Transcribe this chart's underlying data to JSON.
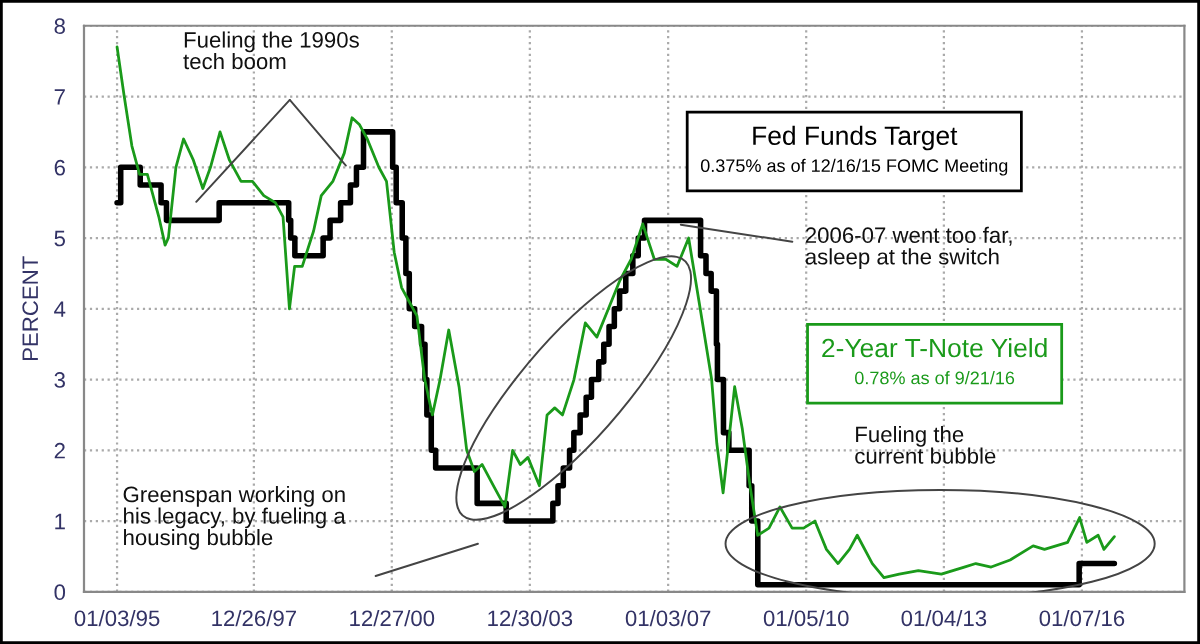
{
  "chart_data": {
    "type": "line",
    "ylabel": "PERCENT",
    "xlim": [
      "1994-04-15",
      "2018-04-01"
    ],
    "xticks": [
      {
        "value": "1995-01-03",
        "label": "01/03/95"
      },
      {
        "value": "1997-12-26",
        "label": "12/26/97"
      },
      {
        "value": "2000-12-27",
        "label": "12/27/00"
      },
      {
        "value": "2003-12-30",
        "label": "12/30/03"
      },
      {
        "value": "2007-01-03",
        "label": "01/03/07"
      },
      {
        "value": "2010-01-05",
        "label": "01/05/10"
      },
      {
        "value": "2013-01-04",
        "label": "01/04/13"
      },
      {
        "value": "2016-01-07",
        "label": "01/07/16"
      }
    ],
    "ylim": [
      0,
      8
    ],
    "yticks": [
      0,
      1,
      2,
      3,
      4,
      5,
      6,
      7,
      8
    ],
    "grid": true,
    "legend": false,
    "series": [
      {
        "name": "Fed Funds Target",
        "type": "step",
        "color": "#000000",
        "x": [
          "1995-01-03",
          "1995-02-01",
          "1995-07-06",
          "1995-12-19",
          "1996-01-31",
          "1997-03-25",
          "1998-09-29",
          "1998-10-15",
          "1998-11-17",
          "1999-06-30",
          "1999-08-24",
          "1999-11-16",
          "2000-02-02",
          "2000-03-21",
          "2000-05-16",
          "2001-01-03",
          "2001-01-31",
          "2001-03-20",
          "2001-04-18",
          "2001-05-15",
          "2001-06-27",
          "2001-08-21",
          "2001-09-17",
          "2001-10-02",
          "2001-11-06",
          "2001-12-11",
          "2002-11-06",
          "2003-06-25",
          "2004-06-30",
          "2004-08-10",
          "2004-09-21",
          "2004-11-10",
          "2004-12-14",
          "2005-02-02",
          "2005-03-22",
          "2005-05-03",
          "2005-06-30",
          "2005-08-09",
          "2005-09-20",
          "2005-11-01",
          "2005-12-13",
          "2006-01-31",
          "2006-03-28",
          "2006-05-10",
          "2006-06-29",
          "2007-09-18",
          "2007-10-31",
          "2007-12-11",
          "2008-01-22",
          "2008-01-30",
          "2008-03-18",
          "2008-04-30",
          "2008-10-08",
          "2008-10-29",
          "2008-12-16",
          "2015-12-16",
          "2016-09-21"
        ],
        "values": [
          5.5,
          6.0,
          5.75,
          5.5,
          5.25,
          5.5,
          5.25,
          5.0,
          4.75,
          5.0,
          5.25,
          5.5,
          5.75,
          6.0,
          6.5,
          6.0,
          5.5,
          5.0,
          4.5,
          4.0,
          3.75,
          3.5,
          3.0,
          2.5,
          2.0,
          1.75,
          1.25,
          1.0,
          1.25,
          1.5,
          1.75,
          2.0,
          2.25,
          2.5,
          2.75,
          3.0,
          3.25,
          3.5,
          3.75,
          4.0,
          4.25,
          4.5,
          4.75,
          5.0,
          5.25,
          4.75,
          4.5,
          4.25,
          3.5,
          3.0,
          2.25,
          2.0,
          1.5,
          1.0,
          0.1,
          0.4,
          0.4
        ]
      },
      {
        "name": "2-Year T-Note Yield",
        "type": "line",
        "color": "#1a9a1a",
        "x": [
          "1995-01-03",
          "1995-03-01",
          "1995-05-01",
          "1995-07-01",
          "1995-09-01",
          "1995-12-01",
          "1996-01-20",
          "1996-02-15",
          "1996-04-15",
          "1996-06-15",
          "1996-09-01",
          "1996-11-15",
          "1997-01-15",
          "1997-04-01",
          "1997-06-15",
          "1997-09-15",
          "1997-12-15",
          "1998-03-15",
          "1998-06-15",
          "1998-08-15",
          "1998-10-05",
          "1998-11-15",
          "1999-01-15",
          "1999-04-15",
          "1999-06-15",
          "1999-09-15",
          "1999-12-15",
          "2000-02-15",
          "2000-04-15",
          "2000-06-15",
          "2000-09-15",
          "2000-11-15",
          "2001-01-15",
          "2001-03-15",
          "2001-05-15",
          "2001-07-15",
          "2001-09-15",
          "2001-11-15",
          "2002-01-15",
          "2002-03-25",
          "2002-06-15",
          "2002-08-15",
          "2002-10-15",
          "2002-12-15",
          "2003-03-15",
          "2003-06-15",
          "2003-08-15",
          "2003-10-15",
          "2003-12-15",
          "2004-03-15",
          "2004-05-15",
          "2004-07-15",
          "2004-09-15",
          "2004-12-15",
          "2005-03-15",
          "2005-06-15",
          "2005-09-15",
          "2005-12-15",
          "2006-03-15",
          "2006-06-15",
          "2006-09-15",
          "2006-12-15",
          "2007-03-15",
          "2007-06-15",
          "2007-09-15",
          "2007-12-15",
          "2008-01-25",
          "2008-03-15",
          "2008-06-15",
          "2008-08-15",
          "2008-10-15",
          "2008-12-15",
          "2009-03-15",
          "2009-06-10",
          "2009-09-15",
          "2009-12-15",
          "2010-03-15",
          "2010-06-15",
          "2010-09-15",
          "2010-12-15",
          "2011-02-15",
          "2011-06-15",
          "2011-09-15",
          "2012-01-15",
          "2012-06-15",
          "2012-12-15",
          "2013-06-15",
          "2013-09-15",
          "2014-01-15",
          "2014-06-15",
          "2014-12-15",
          "2015-03-15",
          "2015-06-15",
          "2015-09-15",
          "2015-12-20",
          "2016-02-15",
          "2016-05-15",
          "2016-06-30",
          "2016-09-21"
        ],
        "values": [
          7.7,
          7.0,
          6.3,
          5.9,
          5.9,
          5.3,
          4.9,
          5.0,
          6.0,
          6.4,
          6.1,
          5.7,
          6.0,
          6.5,
          6.1,
          5.8,
          5.8,
          5.6,
          5.5,
          5.3,
          4.0,
          4.6,
          4.6,
          5.1,
          5.6,
          5.8,
          6.2,
          6.7,
          6.6,
          6.4,
          6.0,
          5.8,
          4.8,
          4.3,
          4.1,
          3.9,
          3.0,
          2.5,
          3.0,
          3.7,
          2.9,
          2.0,
          1.7,
          1.8,
          1.5,
          1.2,
          2.0,
          1.8,
          1.9,
          1.5,
          2.5,
          2.6,
          2.5,
          3.0,
          3.8,
          3.6,
          4.0,
          4.4,
          4.7,
          5.2,
          4.7,
          4.7,
          4.6,
          5.0,
          4.0,
          3.0,
          2.1,
          1.4,
          2.9,
          2.3,
          1.5,
          0.8,
          0.9,
          1.2,
          0.9,
          0.9,
          1.0,
          0.6,
          0.4,
          0.6,
          0.8,
          0.4,
          0.2,
          0.25,
          0.3,
          0.25,
          0.35,
          0.4,
          0.35,
          0.45,
          0.65,
          0.6,
          0.65,
          0.7,
          1.05,
          0.7,
          0.8,
          0.6,
          0.78
        ]
      }
    ],
    "annotations": [
      "0.375% as of 12/16/15 FOMC Meeting",
      "0.78% as of 9/21/16",
      "Fueling the 1990s\ntech boom",
      "Greenspan working on\nhis legacy, by fueling a\nhousing bubble",
      {
        "text": "2006-07 went too far,\nasleep at the switch",
        "x": "2007-03-01",
        "y": 5.2
      },
      "Fueling the\ncurrent bubble"
    ]
  }
}
